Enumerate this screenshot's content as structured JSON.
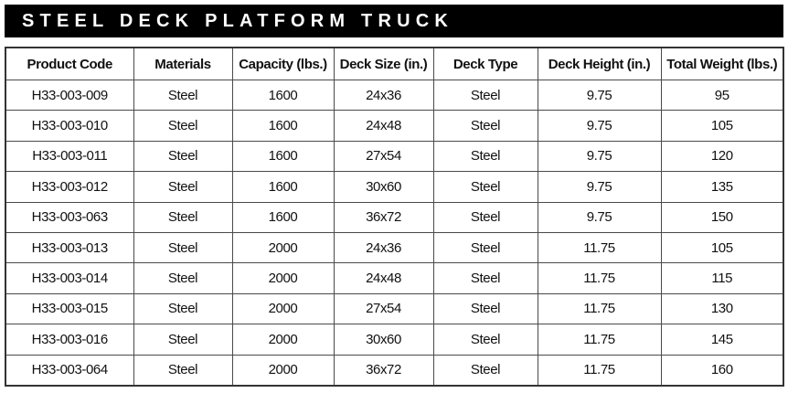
{
  "title": "STEEL DECK PLATFORM TRUCK",
  "table": {
    "headers": [
      "Product Code",
      "Materials",
      "Capacity (lbs.)",
      "Deck Size (in.)",
      "Deck Type",
      "Deck Height (in.)",
      "Total Weight (lbs.)"
    ],
    "rows": [
      [
        "H33-003-009",
        "Steel",
        "1600",
        "24x36",
        "Steel",
        "9.75",
        "95"
      ],
      [
        "H33-003-010",
        "Steel",
        "1600",
        "24x48",
        "Steel",
        "9.75",
        "105"
      ],
      [
        "H33-003-011",
        "Steel",
        "1600",
        "27x54",
        "Steel",
        "9.75",
        "120"
      ],
      [
        "H33-003-012",
        "Steel",
        "1600",
        "30x60",
        "Steel",
        "9.75",
        "135"
      ],
      [
        "H33-003-063",
        "Steel",
        "1600",
        "36x72",
        "Steel",
        "9.75",
        "150"
      ],
      [
        "H33-003-013",
        "Steel",
        "2000",
        "24x36",
        "Steel",
        "11.75",
        "105"
      ],
      [
        "H33-003-014",
        "Steel",
        "2000",
        "24x48",
        "Steel",
        "11.75",
        "115"
      ],
      [
        "H33-003-015",
        "Steel",
        "2000",
        "27x54",
        "Steel",
        "11.75",
        "130"
      ],
      [
        "H33-003-016",
        "Steel",
        "2000",
        "30x60",
        "Steel",
        "11.75",
        "145"
      ],
      [
        "H33-003-064",
        "Steel",
        "2000",
        "36x72",
        "Steel",
        "11.75",
        "160"
      ]
    ]
  }
}
